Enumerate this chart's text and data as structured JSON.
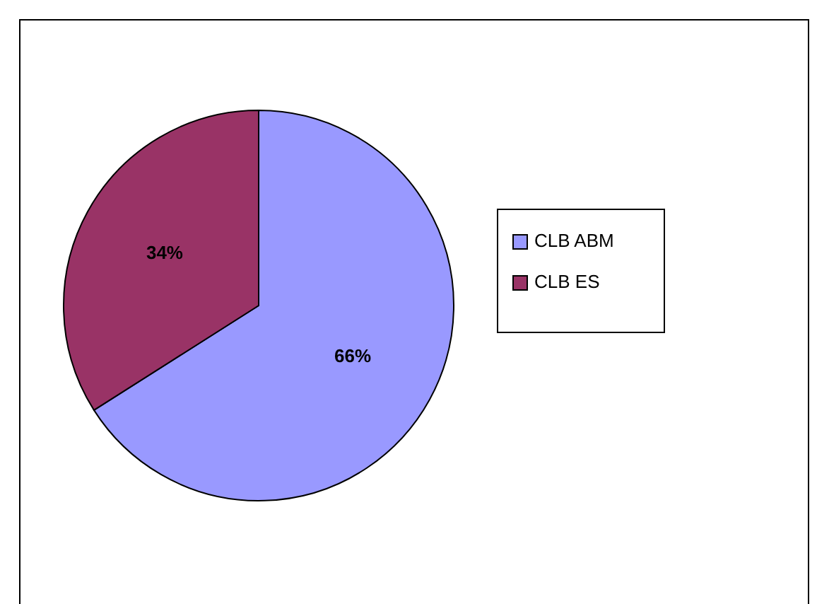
{
  "chart_data": {
    "type": "pie",
    "categories": [
      "CLB ABM",
      "CLB ES"
    ],
    "values": [
      66,
      34
    ],
    "value_labels": [
      "66%",
      "34%"
    ],
    "colors": [
      "#9999ff",
      "#993366"
    ],
    "legend": "right"
  }
}
